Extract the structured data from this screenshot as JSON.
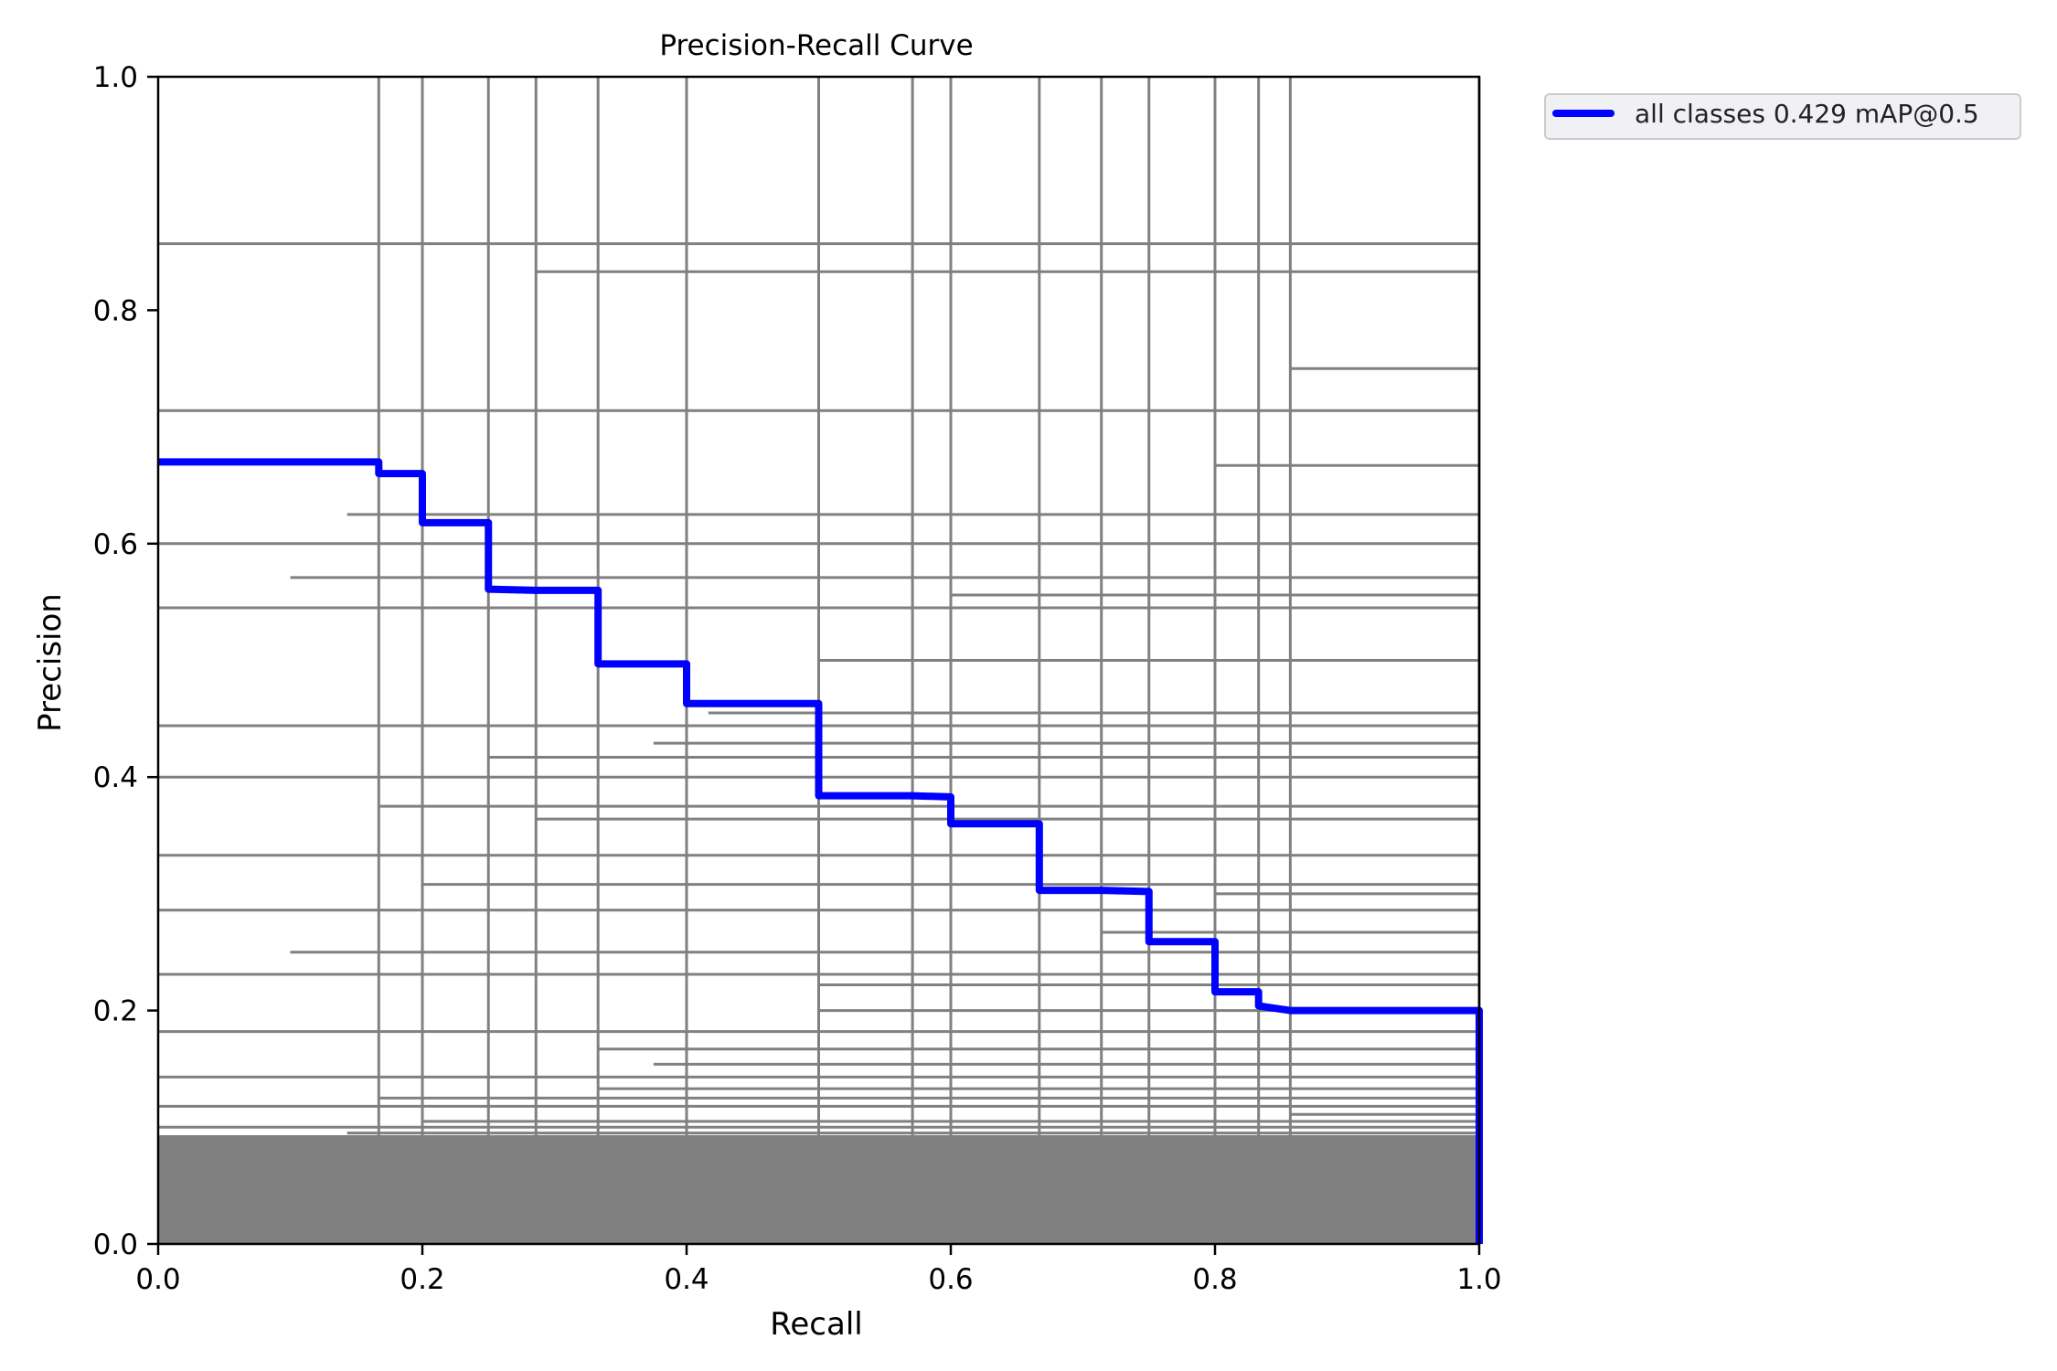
{
  "chart_data": {
    "type": "line",
    "title": "Precision-Recall Curve",
    "xlabel": "Recall",
    "ylabel": "Precision",
    "xlim": [
      0.0,
      1.0
    ],
    "ylim": [
      0.0,
      1.0
    ],
    "xticks": [
      "0.0",
      "0.2",
      "0.4",
      "0.6",
      "0.8",
      "1.0"
    ],
    "yticks": [
      "0.0",
      "0.2",
      "0.4",
      "0.6",
      "0.8",
      "1.0"
    ],
    "grid": false,
    "legend_placement": "outside-top-right",
    "colors": {
      "main_series": "#0000ff",
      "background_curves": "#808080"
    },
    "series": [
      {
        "name": "all classes 0.429 mAP@0.5",
        "x": [
          0.0,
          0.167,
          0.167,
          0.2,
          0.2,
          0.25,
          0.25,
          0.286,
          0.333,
          0.333,
          0.4,
          0.4,
          0.5,
          0.5,
          0.571,
          0.6,
          0.6,
          0.667,
          0.667,
          0.714,
          0.75,
          0.75,
          0.8,
          0.8,
          0.833,
          0.833,
          0.857,
          1.0,
          1.0
        ],
        "y": [
          0.67,
          0.67,
          0.66,
          0.66,
          0.618,
          0.618,
          0.561,
          0.56,
          0.56,
          0.497,
          0.497,
          0.463,
          0.463,
          0.384,
          0.384,
          0.383,
          0.36,
          0.36,
          0.303,
          0.303,
          0.302,
          0.259,
          0.259,
          0.216,
          0.216,
          0.204,
          0.2,
          0.2,
          0.0
        ]
      }
    ],
    "background_curves": {
      "description_count": "per-class curves",
      "vertical_x": [
        0.167,
        0.2,
        0.25,
        0.286,
        0.333,
        0.4,
        0.5,
        0.571,
        0.6,
        0.667,
        0.714,
        0.75,
        0.8,
        0.833,
        0.857,
        1.0
      ],
      "horizontal_y": [
        0.857,
        0.833,
        0.75,
        0.714,
        0.667,
        0.625,
        0.6,
        0.571,
        0.556,
        0.545,
        0.5,
        0.455,
        0.444,
        0.429,
        0.417,
        0.4,
        0.375,
        0.364,
        0.333,
        0.308,
        0.3,
        0.286,
        0.267,
        0.25,
        0.231,
        0.222,
        0.2,
        0.182,
        0.167,
        0.154,
        0.143,
        0.133,
        0.125,
        0.118,
        0.111,
        0.105,
        0.1,
        0.095,
        0.091,
        0.087,
        0.083,
        0.08,
        0.077,
        0.074,
        0.071,
        0.069,
        0.067,
        0.065,
        0.063,
        0.061,
        0.059,
        0.057,
        0.056,
        0.054,
        0.053,
        0.051,
        0.05,
        0.048,
        0.045,
        0.043,
        0.04,
        0.038,
        0.036,
        0.034,
        0.032,
        0.03,
        0.028,
        0.025,
        0.022,
        0.02,
        0.018,
        0.015,
        0.012,
        0.01,
        0.008,
        0.005
      ]
    }
  }
}
